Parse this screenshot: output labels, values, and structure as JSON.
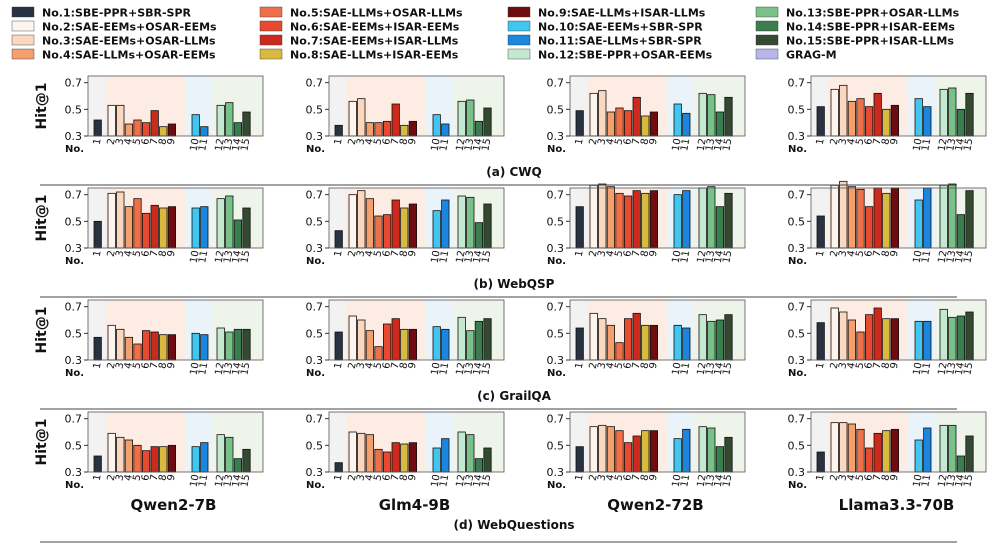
{
  "chart_data": {
    "type": "bar",
    "ylabel": "Hit@1",
    "ylim": [
      0.3,
      0.75
    ],
    "yticks": [
      "0.3",
      "0.5",
      "0.7"
    ],
    "x_axis_prefix": "No.",
    "legend": [
      {
        "label": "No.1:SBE-PPR+SBR-SPR",
        "color": "#283240"
      },
      {
        "label": "No.2:SAE-EEMs+OSAR-EEMs",
        "color": "#fdf4ee"
      },
      {
        "label": "No.3:SAE-EEMs+OSAR-LLMs",
        "color": "#fbd7c0"
      },
      {
        "label": "No.4:SAE-LLMs+OSAR-EEMs",
        "color": "#f4a06e"
      },
      {
        "label": "No.5:SAE-LLMs+OSAR-LLMs",
        "color": "#ed7048"
      },
      {
        "label": "No.6:SAE-EEMs+ISAR-EEMs",
        "color": "#e74a30"
      },
      {
        "label": "No.7:SAE-EEMs+ISAR-LLMs",
        "color": "#cc2a1c"
      },
      {
        "label": "No.8:SAE-LLMs+ISAR-EEMs",
        "color": "#d9b93e"
      },
      {
        "label": "No.9:SAE-LLMs+ISAR-LLMs",
        "color": "#6e0c10"
      },
      {
        "label": "No.10:SAE-EEMs+SBR-SPR",
        "color": "#41c6f2"
      },
      {
        "label": "No.11:SAE-LLMs+SBR-SPR",
        "color": "#1a86e0"
      },
      {
        "label": "No.12:SBE-PPR+OSAR-EEMs",
        "color": "#c3ead0"
      },
      {
        "label": "No.13:SBE-PPR+OSAR-LLMs",
        "color": "#78c28a"
      },
      {
        "label": "No.14:SBE-PPR+ISAR-EEMs",
        "color": "#3b7e4e"
      },
      {
        "label": "No.15:SBE-PPR+ISAR-LLMs",
        "color": "#344a30"
      },
      {
        "label": "GRAG-M",
        "color": "#b9b6ee"
      }
    ],
    "categories": [
      "1",
      "2",
      "3",
      "4",
      "5",
      "6",
      "7",
      "8",
      "9",
      "10",
      "11",
      "12",
      "13",
      "14",
      "15"
    ],
    "models": [
      "Qwen2-7B",
      "Glm4-9B",
      "Qwen2-72B",
      "Llama3.3-70B"
    ],
    "datasets": [
      {
        "caption": "(a) CWQ",
        "values": [
          [
            0.42,
            0.53,
            0.53,
            0.39,
            0.42,
            0.4,
            0.49,
            0.37,
            0.39,
            0.46,
            0.37,
            0.53,
            0.55,
            0.4,
            0.48
          ],
          [
            0.38,
            0.56,
            0.58,
            0.4,
            0.4,
            0.41,
            0.54,
            0.38,
            0.41,
            0.46,
            0.39,
            0.56,
            0.57,
            0.41,
            0.51
          ],
          [
            0.49,
            0.62,
            0.64,
            0.48,
            0.51,
            0.49,
            0.59,
            0.45,
            0.48,
            0.54,
            0.47,
            0.62,
            0.61,
            0.48,
            0.59
          ],
          [
            0.52,
            0.65,
            0.68,
            0.56,
            0.58,
            0.52,
            0.62,
            0.5,
            0.53,
            0.58,
            0.52,
            0.65,
            0.66,
            0.5,
            0.62
          ]
        ]
      },
      {
        "caption": "(b) WebQSP",
        "values": [
          [
            0.5,
            0.71,
            0.72,
            0.61,
            0.67,
            0.56,
            0.62,
            0.6,
            0.61,
            0.6,
            0.61,
            0.67,
            0.69,
            0.51,
            0.6
          ],
          [
            0.43,
            0.7,
            0.73,
            0.67,
            0.54,
            0.55,
            0.66,
            0.6,
            0.63,
            0.58,
            0.66,
            0.69,
            0.68,
            0.49,
            0.63
          ],
          [
            0.61,
            0.77,
            0.78,
            0.76,
            0.71,
            0.69,
            0.73,
            0.71,
            0.73,
            0.7,
            0.73,
            0.75,
            0.76,
            0.61,
            0.71
          ],
          [
            0.54,
            0.77,
            0.8,
            0.76,
            0.74,
            0.61,
            0.75,
            0.71,
            0.75,
            0.66,
            0.75,
            0.77,
            0.78,
            0.55,
            0.73
          ]
        ]
      },
      {
        "caption": "(c) GrailQA",
        "values": [
          [
            0.47,
            0.56,
            0.53,
            0.47,
            0.42,
            0.52,
            0.51,
            0.49,
            0.49,
            0.5,
            0.49,
            0.54,
            0.51,
            0.53,
            0.53
          ],
          [
            0.51,
            0.63,
            0.6,
            0.52,
            0.4,
            0.57,
            0.61,
            0.53,
            0.53,
            0.55,
            0.53,
            0.62,
            0.52,
            0.59,
            0.61
          ],
          [
            0.54,
            0.65,
            0.61,
            0.56,
            0.43,
            0.61,
            0.65,
            0.56,
            0.56,
            0.56,
            0.54,
            0.64,
            0.59,
            0.6,
            0.64
          ],
          [
            0.58,
            0.69,
            0.66,
            0.6,
            0.51,
            0.64,
            0.69,
            0.61,
            0.61,
            0.59,
            0.59,
            0.68,
            0.62,
            0.63,
            0.66
          ]
        ]
      },
      {
        "caption": "(d) WebQuestions",
        "values": [
          [
            0.42,
            0.59,
            0.56,
            0.54,
            0.5,
            0.46,
            0.49,
            0.49,
            0.5,
            0.49,
            0.52,
            0.58,
            0.56,
            0.4,
            0.47
          ],
          [
            0.37,
            0.6,
            0.59,
            0.58,
            0.47,
            0.45,
            0.52,
            0.51,
            0.52,
            0.48,
            0.55,
            0.6,
            0.58,
            0.4,
            0.48
          ],
          [
            0.49,
            0.64,
            0.65,
            0.64,
            0.61,
            0.52,
            0.57,
            0.61,
            0.61,
            0.55,
            0.62,
            0.64,
            0.63,
            0.49,
            0.56
          ],
          [
            0.45,
            0.67,
            0.67,
            0.66,
            0.62,
            0.48,
            0.59,
            0.61,
            0.62,
            0.54,
            0.63,
            0.65,
            0.65,
            0.42,
            0.57
          ]
        ]
      }
    ]
  }
}
